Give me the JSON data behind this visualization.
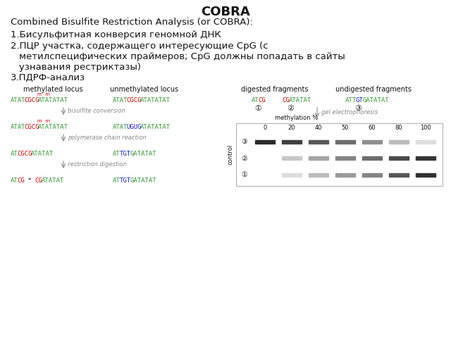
{
  "title": "COBRA",
  "bg_color": "#ffffff",
  "green": "#3a9a3a",
  "red": "#cc0000",
  "blue": "#1a1acc",
  "gray": "#888888",
  "black": "#111111",
  "title_fontsize": 13,
  "subtitle_fontsize": 9.5,
  "body_fontsize": 9.5,
  "label_fontsize": 7,
  "dna_fontsize": 6.5,
  "arrow_fontsize": 6,
  "gel_label_fontsize": 6,
  "band_intensities_row3": [
    0.95,
    0.85,
    0.75,
    0.65,
    0.5,
    0.3,
    0.15
  ],
  "band_intensities_row2": [
    0.0,
    0.25,
    0.4,
    0.55,
    0.65,
    0.8,
    0.9
  ],
  "band_intensities_row1": [
    0.0,
    0.15,
    0.3,
    0.45,
    0.55,
    0.75,
    0.92
  ]
}
